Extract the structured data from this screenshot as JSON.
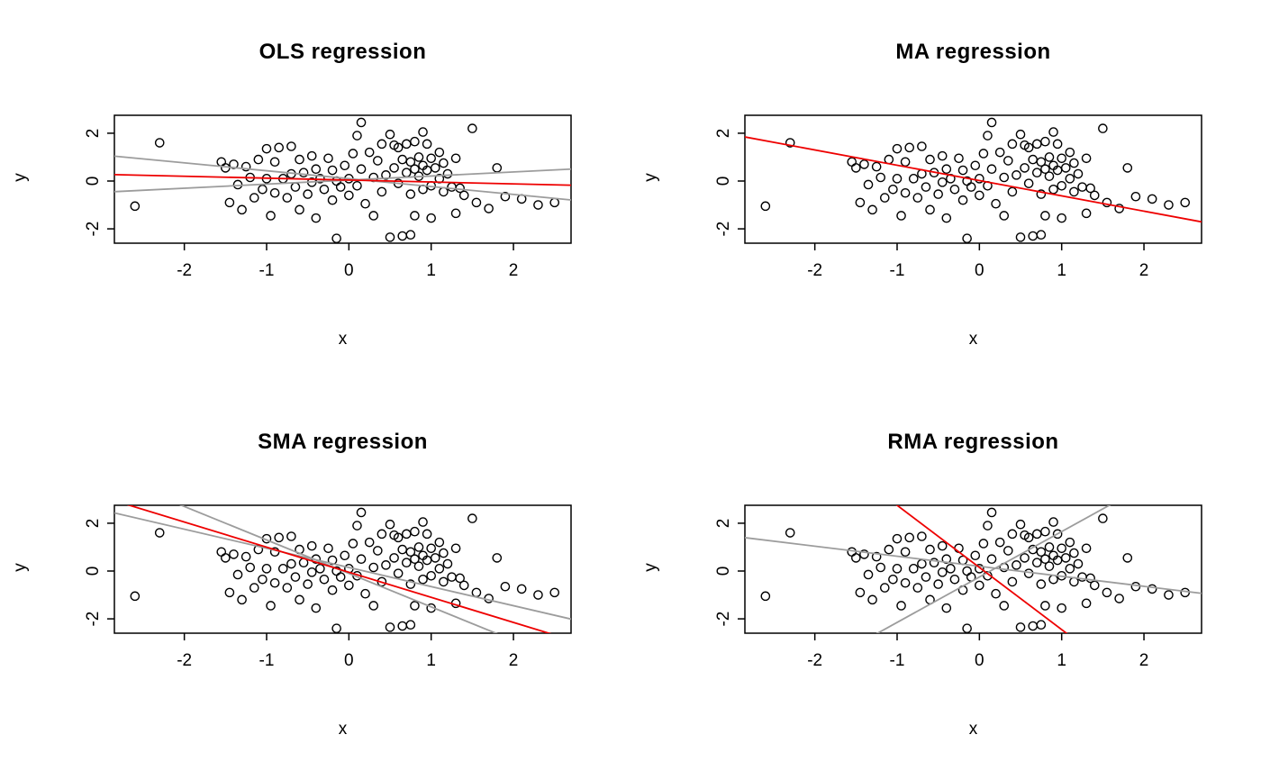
{
  "figure": {
    "background": "#ffffff",
    "description": "2x2 grid of scatter plots comparing regression methods"
  },
  "chart_data": {
    "type": "scatter",
    "xlabel": "x",
    "ylabel": "y",
    "xlim": [
      -2.85,
      2.7
    ],
    "ylim": [
      -2.6,
      2.75
    ],
    "xticks": [
      "-2",
      "-1",
      "0",
      "1",
      "2"
    ],
    "yticks": [
      "-2",
      "0",
      "2"
    ],
    "grid": false,
    "legend": "none",
    "colors": {
      "point": "#000000",
      "highlight": "#EE0000",
      "secondary": "#9C9C9C",
      "box": "#000000"
    },
    "points": [
      [
        -2.6,
        -1.05
      ],
      [
        -2.3,
        1.6
      ],
      [
        -1.55,
        0.8
      ],
      [
        -1.5,
        0.55
      ],
      [
        -1.45,
        -0.9
      ],
      [
        -1.4,
        0.7
      ],
      [
        -1.35,
        -0.15
      ],
      [
        -1.3,
        -1.2
      ],
      [
        -1.25,
        0.6
      ],
      [
        -1.2,
        0.15
      ],
      [
        -1.15,
        -0.7
      ],
      [
        -1.1,
        0.9
      ],
      [
        -1.05,
        -0.35
      ],
      [
        -1.0,
        1.35
      ],
      [
        -1.0,
        0.1
      ],
      [
        -0.95,
        -1.45
      ],
      [
        -0.9,
        0.8
      ],
      [
        -0.9,
        -0.5
      ],
      [
        -0.85,
        1.4
      ],
      [
        -0.8,
        0.1
      ],
      [
        -0.75,
        -0.7
      ],
      [
        -0.7,
        1.45
      ],
      [
        -0.7,
        0.3
      ],
      [
        -0.65,
        -0.25
      ],
      [
        -0.6,
        0.9
      ],
      [
        -0.6,
        -1.2
      ],
      [
        -0.55,
        0.35
      ],
      [
        -0.5,
        -0.55
      ],
      [
        -0.45,
        1.05
      ],
      [
        -0.45,
        -0.05
      ],
      [
        -0.4,
        0.5
      ],
      [
        -0.4,
        -1.55
      ],
      [
        -0.35,
        0.1
      ],
      [
        -0.3,
        -0.35
      ],
      [
        -0.25,
        0.95
      ],
      [
        -0.2,
        0.45
      ],
      [
        -0.2,
        -0.8
      ],
      [
        -0.15,
        0.0
      ],
      [
        -0.15,
        -2.4
      ],
      [
        -0.1,
        -0.25
      ],
      [
        -0.05,
        0.65
      ],
      [
        0.0,
        0.1
      ],
      [
        0.0,
        -0.6
      ],
      [
        0.05,
        1.15
      ],
      [
        0.1,
        1.9
      ],
      [
        0.1,
        -0.2
      ],
      [
        0.15,
        2.45
      ],
      [
        0.15,
        0.5
      ],
      [
        0.2,
        -0.95
      ],
      [
        0.25,
        1.2
      ],
      [
        0.3,
        0.15
      ],
      [
        0.3,
        -1.45
      ],
      [
        0.35,
        0.85
      ],
      [
        0.4,
        1.55
      ],
      [
        0.4,
        -0.45
      ],
      [
        0.45,
        0.25
      ],
      [
        0.5,
        1.95
      ],
      [
        0.5,
        -2.35
      ],
      [
        0.55,
        1.5
      ],
      [
        0.55,
        0.55
      ],
      [
        0.6,
        1.4
      ],
      [
        0.6,
        -0.1
      ],
      [
        0.65,
        0.9
      ],
      [
        0.65,
        -2.3
      ],
      [
        0.7,
        1.55
      ],
      [
        0.7,
        0.35
      ],
      [
        0.75,
        0.8
      ],
      [
        0.75,
        -0.55
      ],
      [
        0.75,
        -2.25
      ],
      [
        0.8,
        1.65
      ],
      [
        0.8,
        0.5
      ],
      [
        0.8,
        -1.45
      ],
      [
        0.85,
        1.0
      ],
      [
        0.85,
        0.2
      ],
      [
        0.9,
        2.05
      ],
      [
        0.9,
        0.65
      ],
      [
        0.9,
        -0.35
      ],
      [
        0.95,
        1.55
      ],
      [
        0.95,
        0.45
      ],
      [
        1.0,
        0.95
      ],
      [
        1.0,
        -0.2
      ],
      [
        1.0,
        -1.55
      ],
      [
        1.05,
        0.55
      ],
      [
        1.1,
        1.2
      ],
      [
        1.1,
        0.1
      ],
      [
        1.15,
        0.75
      ],
      [
        1.15,
        -0.45
      ],
      [
        1.2,
        0.3
      ],
      [
        1.25,
        -0.25
      ],
      [
        1.3,
        0.95
      ],
      [
        1.3,
        -1.35
      ],
      [
        1.35,
        -0.3
      ],
      [
        1.4,
        -0.6
      ],
      [
        1.5,
        2.2
      ],
      [
        1.55,
        -0.9
      ],
      [
        1.7,
        -1.15
      ],
      [
        1.8,
        0.55
      ],
      [
        1.9,
        -0.65
      ],
      [
        2.1,
        -0.75
      ],
      [
        2.3,
        -1.0
      ],
      [
        2.5,
        -0.9
      ]
    ],
    "panels": [
      {
        "title": "OLS regression",
        "lines": [
          {
            "role": "confidence-limit",
            "slope": -0.33,
            "intercept": 0.1,
            "color": "secondary"
          },
          {
            "role": "confidence-limit",
            "slope": 0.17,
            "intercept": 0.04,
            "color": "secondary"
          },
          {
            "role": "fit",
            "slope": -0.08,
            "intercept": 0.04,
            "color": "highlight"
          }
        ]
      },
      {
        "title": "MA regression",
        "lines": [
          {
            "role": "fit",
            "slope": -0.64,
            "intercept": 0.02,
            "color": "highlight"
          }
        ]
      },
      {
        "title": "SMA regression",
        "lines": [
          {
            "role": "confidence-limit",
            "slope": -0.8,
            "intercept": 0.15,
            "color": "secondary"
          },
          {
            "role": "confidence-limit",
            "slope": -1.4,
            "intercept": -0.1,
            "color": "secondary"
          },
          {
            "role": "fit",
            "slope": -1.05,
            "intercept": -0.05,
            "color": "highlight"
          }
        ]
      },
      {
        "title": "RMA regression",
        "lines": [
          {
            "role": "confidence-limit",
            "slope": -0.42,
            "intercept": 0.2,
            "color": "secondary"
          },
          {
            "role": "confidence-limit",
            "slope": 1.9,
            "intercept": -0.25,
            "color": "secondary"
          },
          {
            "role": "fit",
            "slope": -2.6,
            "intercept": 0.15,
            "color": "highlight"
          }
        ]
      }
    ]
  }
}
